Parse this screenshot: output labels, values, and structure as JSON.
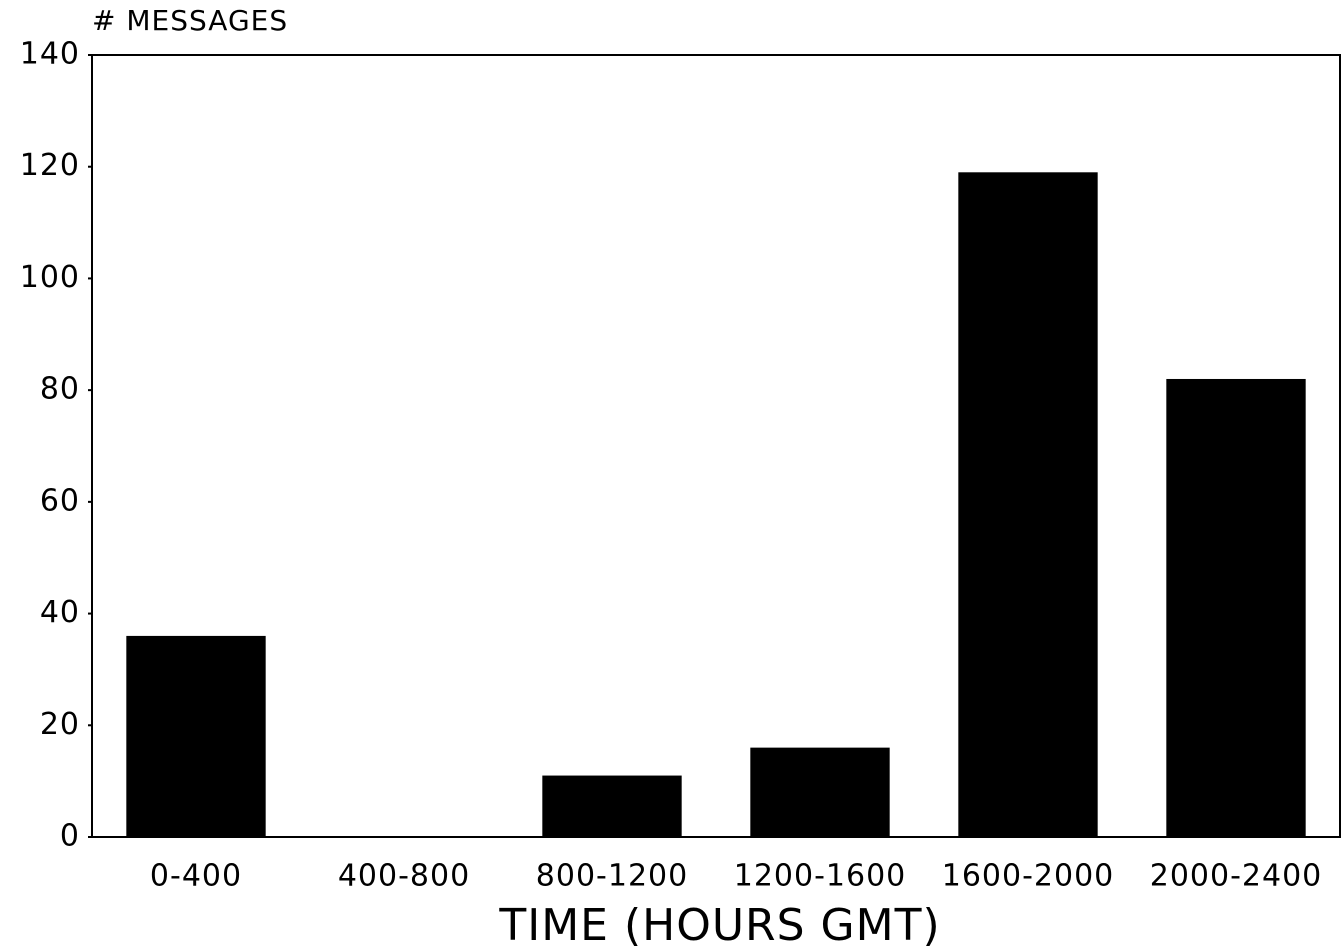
{
  "chart_data": {
    "type": "bar",
    "y_label": "# MESSAGES",
    "x_label": "TIME (HOURS GMT)",
    "categories": [
      "0-400",
      "400-800",
      "800-1200",
      "1200-1600",
      "1600-2000",
      "2000-2400"
    ],
    "values": [
      36,
      0,
      11,
      16,
      119,
      82
    ],
    "color": "#000000",
    "ylim": [
      0,
      140
    ],
    "yticks": [
      0,
      20,
      40,
      60,
      80,
      100,
      120,
      140
    ],
    "grid": false
  }
}
